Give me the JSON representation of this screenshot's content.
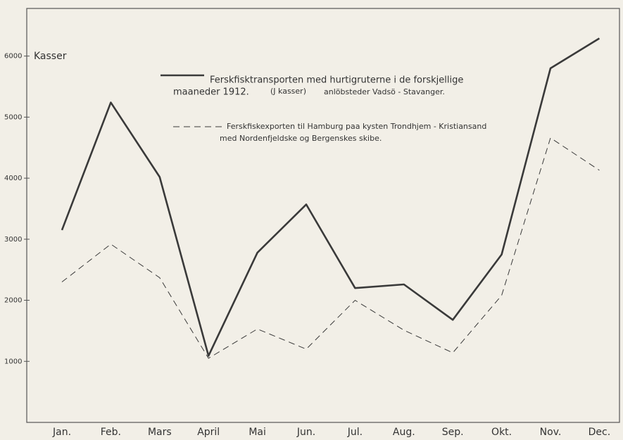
{
  "chart_data": {
    "type": "line",
    "y_label": "Kasser",
    "categories": [
      "Jan.",
      "Feb.",
      "Mars",
      "April",
      "Mai",
      "Jun.",
      "Jul.",
      "Aug.",
      "Sep.",
      "Okt.",
      "Nov.",
      "Dec."
    ],
    "series": [
      {
        "name": "Ferskfisktransporten med hurtigruterne i de forskjellige",
        "name_cont": "maaneder 1912.",
        "note": "(J kasser)",
        "note2": "anlöbsteder Vadsö - Stavanger.",
        "color": "#3a3a3a",
        "style": "solid",
        "values": [
          3150,
          5240,
          4020,
          1090,
          2780,
          3570,
          2200,
          2260,
          1680,
          2750,
          5800,
          6290
        ]
      },
      {
        "name": "Ferskfiskexporten til Hamburg paa kysten Trondhjem - Kristiansand",
        "name_cont": "med Nordenfjeldske og Bergenskes skibe.",
        "color": "#3a3a3a",
        "style": "dashed",
        "values": [
          2300,
          2920,
          2370,
          1050,
          1530,
          1200,
          2000,
          1510,
          1140,
          2080,
          4660,
          4130
        ]
      }
    ],
    "ylim": [
      0,
      6780
    ],
    "yticks": [
      1000,
      2000,
      3000,
      4000,
      5000,
      6000
    ],
    "grid": false
  }
}
